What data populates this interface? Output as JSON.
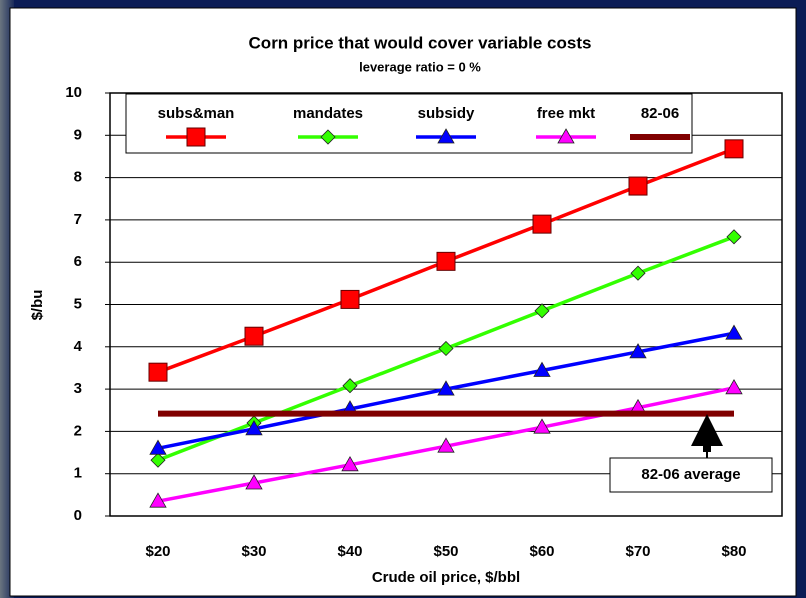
{
  "chart_data": {
    "type": "line",
    "title": "Corn price that would cover variable costs",
    "subtitle": "leverage ratio = 0 %",
    "x_label": "Crude oil price, $/bbl",
    "y_label": "$/bu",
    "categories": [
      "$20",
      "$30",
      "$40",
      "$50",
      "$60",
      "$70",
      "$80"
    ],
    "series": [
      {
        "name": "subs&man",
        "color": "#ff0000",
        "marker": "square",
        "values": [
          3.4,
          4.25,
          5.12,
          6.02,
          6.9,
          7.8,
          8.68
        ]
      },
      {
        "name": "mandates",
        "color": "#33ff00",
        "marker": "diamond",
        "values": [
          1.32,
          2.2,
          3.08,
          3.96,
          4.85,
          5.74,
          6.6
        ]
      },
      {
        "name": "subsidy",
        "color": "#0000ff",
        "marker": "triangle",
        "values": [
          1.6,
          2.06,
          2.53,
          3.0,
          3.44,
          3.88,
          4.32
        ]
      },
      {
        "name": "free mkt",
        "color": "#ff00ff",
        "marker": "triangle",
        "values": [
          0.35,
          0.78,
          1.21,
          1.65,
          2.1,
          2.56,
          3.03
        ]
      },
      {
        "name": "82-06",
        "color": "#800000",
        "marker": "none",
        "values": [
          2.42,
          2.42,
          2.42,
          2.42,
          2.42,
          2.42,
          2.42
        ]
      }
    ],
    "ylim": [
      0,
      10
    ],
    "yticks": [
      0,
      1,
      2,
      3,
      4,
      5,
      6,
      7,
      8,
      9,
      10
    ],
    "grid": true,
    "legend": "top",
    "annotations": [
      "82-06 average"
    ]
  }
}
